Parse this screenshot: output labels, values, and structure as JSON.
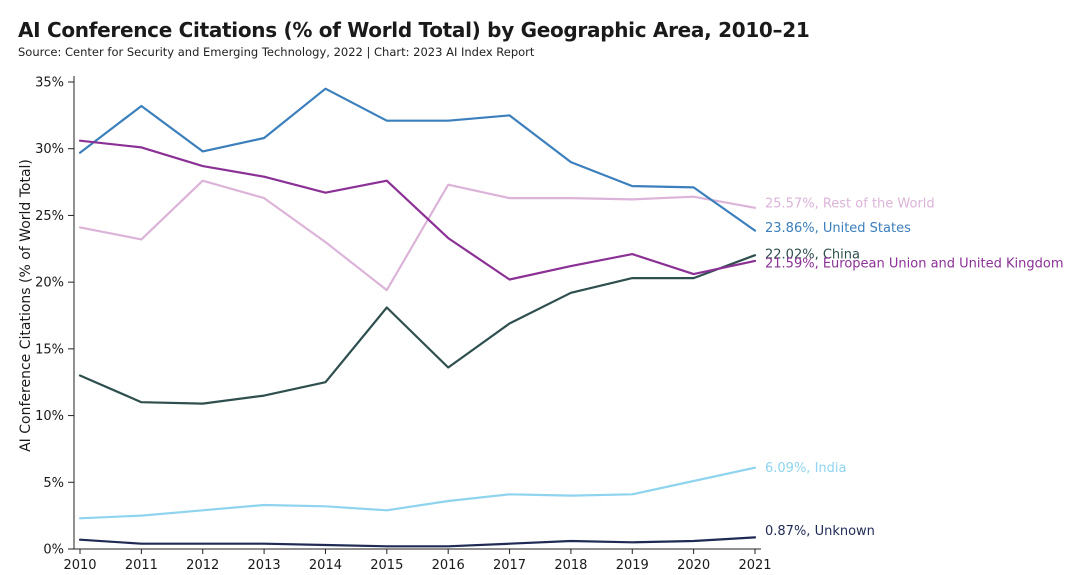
{
  "title": "AI Conference Citations (% of World Total) by Geographic Area, 2010–21",
  "subtitle": "Source: Center for Security and Emerging Technology, 2022 | Chart: 2023 AI Index Report",
  "chart_data": {
    "type": "line",
    "title": "AI Conference Citations (% of World Total) by Geographic Area, 2010–21",
    "xlabel": "",
    "ylabel": "AI Conference Citations (% of World Total)",
    "x": [
      2010,
      2011,
      2012,
      2013,
      2014,
      2015,
      2016,
      2017,
      2018,
      2019,
      2020,
      2021
    ],
    "xtick_labels": [
      "2010",
      "2011",
      "2012",
      "2013",
      "2014",
      "2015",
      "2016",
      "2017",
      "2018",
      "2019",
      "2020",
      "2021"
    ],
    "ylim": [
      0,
      35
    ],
    "yticks": [
      0,
      5,
      10,
      15,
      20,
      25,
      30,
      35
    ],
    "ytick_labels": [
      "0%",
      "5%",
      "10%",
      "15%",
      "20%",
      "25%",
      "30%",
      "35%"
    ],
    "grid": false,
    "legend": "direct labels at line ends (right)",
    "series": [
      {
        "name": "Rest of the World",
        "end_label": "25.57%, Rest of the World",
        "color": "#dcb4d9",
        "values": [
          24.1,
          23.2,
          27.6,
          26.3,
          23.0,
          19.4,
          27.3,
          26.3,
          26.3,
          26.2,
          26.4,
          25.57
        ]
      },
      {
        "name": "United States",
        "end_label": "23.86%, United States",
        "color": "#3b7fbd",
        "values": [
          29.7,
          33.2,
          29.8,
          30.8,
          34.5,
          32.1,
          32.1,
          32.5,
          29.0,
          27.2,
          27.1,
          23.86
        ]
      },
      {
        "name": "China",
        "end_label": "22.02%, China",
        "color": "#2f4f4f",
        "values": [
          13.0,
          11.0,
          10.9,
          11.5,
          12.5,
          18.1,
          13.6,
          16.9,
          19.2,
          20.3,
          20.3,
          22.02
        ]
      },
      {
        "name": "European Union and United Kingdom",
        "end_label": "21.59%, European Union and United Kingdom",
        "color": "#8b3196",
        "values": [
          30.6,
          30.1,
          28.7,
          27.9,
          26.7,
          27.6,
          23.3,
          20.2,
          21.2,
          22.1,
          20.6,
          21.59
        ]
      },
      {
        "name": "India",
        "end_label": "6.09%, India",
        "color": "#8fd4ee",
        "values": [
          2.3,
          2.5,
          2.9,
          3.3,
          3.2,
          2.9,
          3.6,
          4.1,
          4.0,
          4.1,
          5.1,
          6.09
        ]
      },
      {
        "name": "Unknown",
        "end_label": "0.87%, Unknown",
        "color": "#1f2a55",
        "values": [
          0.7,
          0.4,
          0.4,
          0.4,
          0.3,
          0.2,
          0.2,
          0.4,
          0.6,
          0.5,
          0.6,
          0.87
        ]
      }
    ]
  }
}
